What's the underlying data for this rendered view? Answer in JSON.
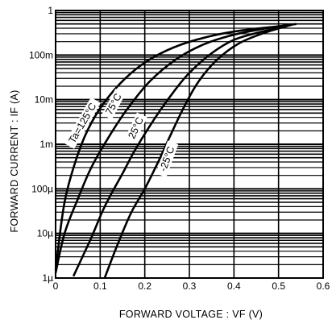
{
  "chart_data": {
    "type": "line",
    "xlabel": "FORWARD VOLTAGE : VF (V)",
    "ylabel": "FORWARD CURRENT : IF (A)",
    "xlim": [
      0,
      0.6
    ],
    "ylim": [
      1e-06,
      1
    ],
    "y_scale": "log",
    "grid": true,
    "x_ticks": [
      {
        "value": 0,
        "label": "0"
      },
      {
        "value": 0.1,
        "label": "0.1"
      },
      {
        "value": 0.2,
        "label": "0.2"
      },
      {
        "value": 0.3,
        "label": "0.3"
      },
      {
        "value": 0.4,
        "label": "0.4"
      },
      {
        "value": 0.5,
        "label": "0.5"
      },
      {
        "value": 0.6,
        "label": "0.6"
      }
    ],
    "y_ticks": [
      {
        "value": 1,
        "label": "1"
      },
      {
        "value": 0.1,
        "label": "100m"
      },
      {
        "value": 0.01,
        "label": "10m"
      },
      {
        "value": 0.001,
        "label": "1m"
      },
      {
        "value": 0.0001,
        "label": "100µ"
      },
      {
        "value": 1e-05,
        "label": "10µ"
      },
      {
        "value": 1e-06,
        "label": "1µ"
      }
    ],
    "series": [
      {
        "name": "Ta=125°C",
        "points": [
          [
            0.0,
            1.5e-06
          ],
          [
            0.02,
            5e-05
          ],
          [
            0.05,
            0.0006
          ],
          [
            0.08,
            0.003
          ],
          [
            0.12,
            0.012
          ],
          [
            0.17,
            0.04
          ],
          [
            0.22,
            0.09
          ],
          [
            0.28,
            0.17
          ],
          [
            0.35,
            0.27
          ],
          [
            0.42,
            0.36
          ],
          [
            0.5,
            0.44
          ],
          [
            0.54,
            0.5
          ]
        ]
      },
      {
        "name": "75°C",
        "points": [
          [
            0.0,
            1.3e-06
          ],
          [
            0.02,
            1e-05
          ],
          [
            0.05,
            6e-05
          ],
          [
            0.08,
            0.0003
          ],
          [
            0.12,
            0.0015
          ],
          [
            0.16,
            0.006
          ],
          [
            0.21,
            0.025
          ],
          [
            0.27,
            0.08
          ],
          [
            0.33,
            0.17
          ],
          [
            0.39,
            0.27
          ],
          [
            0.46,
            0.38
          ],
          [
            0.53,
            0.48
          ]
        ]
      },
      {
        "name": "25°C",
        "points": [
          [
            0.04,
            1.1e-06
          ],
          [
            0.08,
            8e-06
          ],
          [
            0.11,
            4e-05
          ],
          [
            0.15,
            0.00022
          ],
          [
            0.18,
            0.0008
          ],
          [
            0.22,
            0.0035
          ],
          [
            0.26,
            0.013
          ],
          [
            0.3,
            0.04
          ],
          [
            0.35,
            0.11
          ],
          [
            0.4,
            0.22
          ],
          [
            0.46,
            0.33
          ],
          [
            0.52,
            0.45
          ]
        ]
      },
      {
        "name": "-25°C",
        "points": [
          [
            0.11,
            1e-06
          ],
          [
            0.14,
            6e-06
          ],
          [
            0.17,
            3e-05
          ],
          [
            0.2,
            0.0001
          ],
          [
            0.23,
            0.0004
          ],
          [
            0.26,
            0.0018
          ],
          [
            0.29,
            0.0075
          ],
          [
            0.32,
            0.025
          ],
          [
            0.36,
            0.075
          ],
          [
            0.41,
            0.18
          ],
          [
            0.47,
            0.32
          ],
          [
            0.53,
            0.48
          ]
        ]
      }
    ]
  }
}
